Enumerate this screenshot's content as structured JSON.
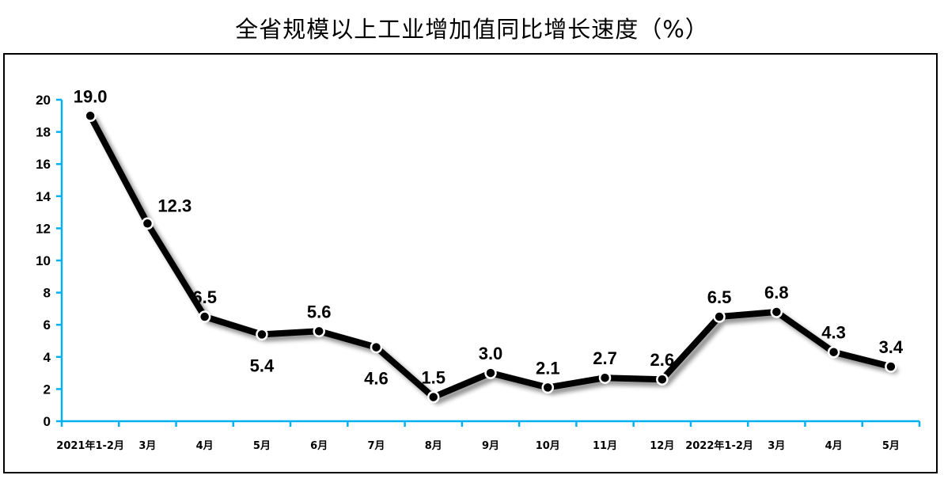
{
  "chart_data": {
    "type": "line",
    "title": "全省规模以上工业增加值同比增长速度（%）",
    "xlabel": "",
    "ylabel": "",
    "categories": [
      "2021年1-2月",
      "3月",
      "4月",
      "5月",
      "6月",
      "7月",
      "8月",
      "9月",
      "10月",
      "11月",
      "12月",
      "2022年1-2月",
      "3月",
      "4月",
      "5月"
    ],
    "series": [
      {
        "values": [
          19.0,
          12.3,
          6.5,
          5.4,
          5.6,
          4.6,
          1.5,
          3.0,
          2.1,
          2.7,
          2.6,
          6.5,
          6.8,
          4.3,
          3.4
        ]
      }
    ],
    "data_labels": [
      "19.0",
      "12.3",
      "6.5",
      "5.4",
      "5.6",
      "4.6",
      "1.5",
      "3.0",
      "2.1",
      "2.7",
      "2.6",
      "6.5",
      "6.8",
      "4.3",
      "3.4"
    ],
    "label_positions": [
      "above",
      "right",
      "above",
      "below",
      "above",
      "below",
      "above",
      "above",
      "above",
      "above",
      "above",
      "above",
      "above",
      "above",
      "above"
    ],
    "ylim": [
      0,
      20
    ],
    "yticks": [
      "0",
      "2",
      "4",
      "6",
      "8",
      "10",
      "12",
      "14",
      "16",
      "18",
      "20"
    ],
    "grid": false,
    "legend": "none",
    "colors": {
      "line": "#000000",
      "axis": "#00B0F0",
      "marker_fill": "#ffffff"
    }
  }
}
